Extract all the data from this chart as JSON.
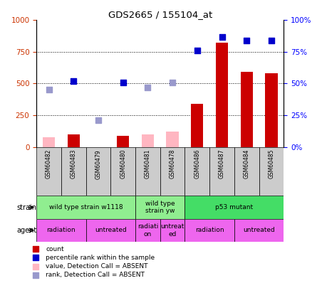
{
  "title": "GDS2665 / 155104_at",
  "samples": [
    "GSM60482",
    "GSM60483",
    "GSM60479",
    "GSM60480",
    "GSM60481",
    "GSM60478",
    "GSM60486",
    "GSM60487",
    "GSM60484",
    "GSM60485"
  ],
  "count_values": [
    null,
    100,
    null,
    90,
    null,
    null,
    340,
    820,
    590,
    580
  ],
  "count_absent": [
    75,
    null,
    null,
    null,
    100,
    120,
    null,
    null,
    null,
    null
  ],
  "rank_values": [
    null,
    520,
    null,
    510,
    null,
    null,
    760,
    870,
    840,
    840
  ],
  "rank_absent": [
    450,
    null,
    210,
    null,
    470,
    510,
    null,
    null,
    null,
    null
  ],
  "ylim_left": [
    0,
    1000
  ],
  "ylim_right": [
    0,
    100
  ],
  "yticks_left": [
    0,
    250,
    500,
    750,
    1000
  ],
  "yticks_right": [
    0,
    25,
    50,
    75,
    100
  ],
  "strain_groups": [
    {
      "label": "wild type strain w1118",
      "start": 0,
      "end": 4,
      "color": "#90EE90"
    },
    {
      "label": "wild type\nstrain yw",
      "start": 4,
      "end": 6,
      "color": "#90EE90"
    },
    {
      "label": "p53 mutant",
      "start": 6,
      "end": 10,
      "color": "#44DD66"
    }
  ],
  "agent_groups": [
    {
      "label": "radiation",
      "start": 0,
      "end": 2,
      "color": "#EE66EE"
    },
    {
      "label": "untreated",
      "start": 2,
      "end": 4,
      "color": "#EE66EE"
    },
    {
      "label": "radiati\non",
      "start": 4,
      "end": 5,
      "color": "#EE66EE"
    },
    {
      "label": "untreat\ned",
      "start": 5,
      "end": 6,
      "color": "#EE66EE"
    },
    {
      "label": "radiation",
      "start": 6,
      "end": 8,
      "color": "#EE66EE"
    },
    {
      "label": "untreated",
      "start": 8,
      "end": 10,
      "color": "#EE66EE"
    }
  ],
  "bar_color_present": "#CC0000",
  "bar_color_absent": "#FFB6C1",
  "dot_color_present": "#0000CC",
  "dot_color_absent": "#9999CC",
  "sample_box_color": "#CCCCCC",
  "bar_width": 0.5,
  "dot_size": 40,
  "legend_items": [
    {
      "color": "#CC0000",
      "label": "count"
    },
    {
      "color": "#0000CC",
      "label": "percentile rank within the sample"
    },
    {
      "color": "#FFB6C1",
      "label": "value, Detection Call = ABSENT"
    },
    {
      "color": "#9999CC",
      "label": "rank, Detection Call = ABSENT"
    }
  ]
}
